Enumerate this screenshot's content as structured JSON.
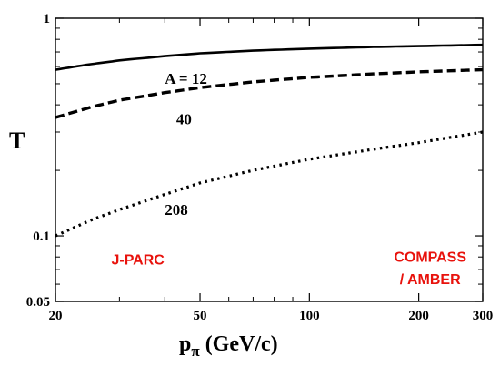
{
  "chart_data": {
    "type": "line",
    "x_scale": "log",
    "y_scale": "log",
    "xlim": [
      20,
      300
    ],
    "ylim": [
      0.05,
      1
    ],
    "x_ticks": [
      {
        "value": 20,
        "label": "20"
      },
      {
        "value": 50,
        "label": "50"
      },
      {
        "value": 100,
        "label": "100"
      },
      {
        "value": 200,
        "label": "200"
      },
      {
        "value": 300,
        "label": "300"
      }
    ],
    "y_ticks": [
      {
        "value": 0.05,
        "label": "0.05"
      },
      {
        "value": 0.1,
        "label": "0.1"
      },
      {
        "value": 1,
        "label": "1"
      }
    ],
    "ylabel": "T",
    "xlabel_main": "p",
    "xlabel_sub": "π",
    "xlabel_rest": " (GeV/c)",
    "grid": false,
    "series": [
      {
        "name": "A = 12",
        "style": "solid",
        "x": [
          20,
          25,
          30,
          40,
          50,
          70,
          100,
          150,
          200,
          300
        ],
        "y": [
          0.58,
          0.615,
          0.64,
          0.67,
          0.69,
          0.71,
          0.725,
          0.738,
          0.745,
          0.755
        ]
      },
      {
        "name": "40",
        "style": "dashed",
        "x": [
          20,
          25,
          30,
          40,
          50,
          70,
          100,
          150,
          200,
          300
        ],
        "y": [
          0.35,
          0.39,
          0.42,
          0.455,
          0.48,
          0.51,
          0.535,
          0.555,
          0.567,
          0.58
        ]
      },
      {
        "name": "208",
        "style": "dotted",
        "x": [
          20,
          25,
          30,
          40,
          50,
          70,
          100,
          150,
          200,
          300
        ],
        "y": [
          0.1,
          0.118,
          0.132,
          0.155,
          0.175,
          0.2,
          0.225,
          0.25,
          0.268,
          0.3
        ]
      }
    ],
    "curve_labels": [
      {
        "text": "A = 12",
        "x": 40,
        "y": 0.5
      },
      {
        "text": "40",
        "x": 43,
        "y": 0.325
      },
      {
        "text": "208",
        "x": 40,
        "y": 0.125
      }
    ],
    "annotations": [
      {
        "text": "J-PARC",
        "color": "#e8120c",
        "x": 28.5,
        "y": 0.074
      },
      {
        "text": "COMPASS",
        "color": "#e8120c",
        "x": 215,
        "y": 0.076
      },
      {
        "text": "/ AMBER",
        "color": "#e8120c",
        "x": 215,
        "y": 0.06
      }
    ]
  }
}
